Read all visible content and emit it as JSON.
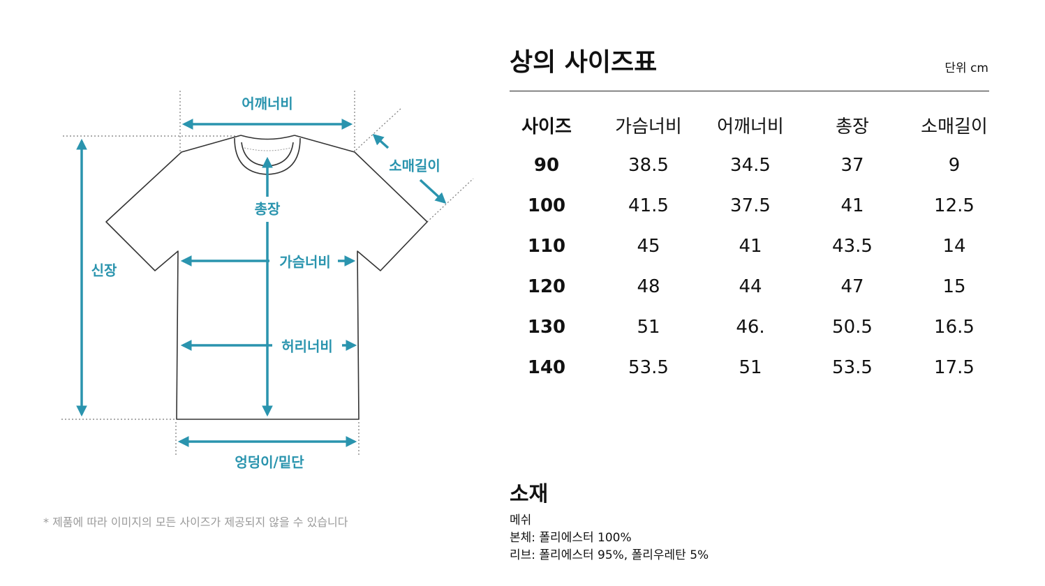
{
  "diagram": {
    "labels": {
      "shoulder": "어깨너비",
      "sleeve": "소매길이",
      "total_length": "총장",
      "height": "신장",
      "chest": "가슴너비",
      "waist": "허리너비",
      "hem": "엉덩이/밑단"
    },
    "accent_color": "#2a94ae",
    "note": "* 제품에 따라 이미지의 모든 사이즈가 제공되지 않을 수 있습니다"
  },
  "size_chart": {
    "title": "상의 사이즈표",
    "unit": "단위 cm",
    "headers": [
      "사이즈",
      "가슴너비",
      "어깨너비",
      "총장",
      "소매길이"
    ],
    "rows": [
      [
        "90",
        "38.5",
        "34.5",
        "37",
        "9"
      ],
      [
        "100",
        "41.5",
        "37.5",
        "41",
        "12.5"
      ],
      [
        "110",
        "45",
        "41",
        "43.5",
        "14"
      ],
      [
        "120",
        "48",
        "44",
        "47",
        "15"
      ],
      [
        "130",
        "51",
        "46.",
        "50.5",
        "16.5"
      ],
      [
        "140",
        "53.5",
        "51",
        "53.5",
        "17.5"
      ]
    ]
  },
  "material": {
    "title": "소재",
    "lines": [
      "메쉬",
      "본체: 폴리에스터 100%",
      "리브: 폴리에스터 95%, 폴리우레탄 5%"
    ]
  }
}
